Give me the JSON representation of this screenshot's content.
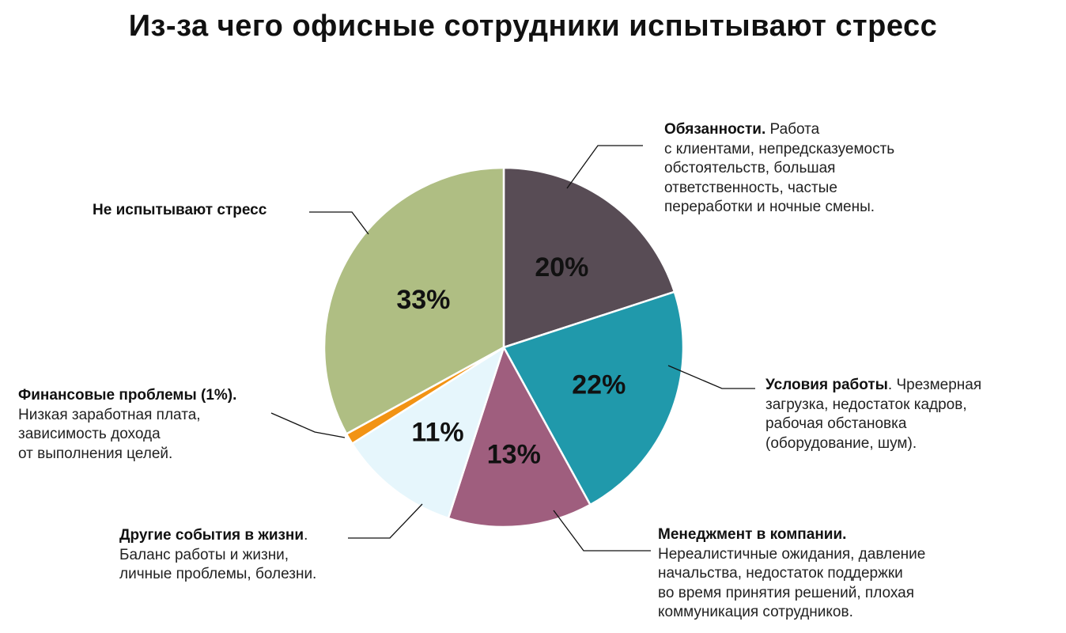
{
  "title": "Из-за чего офисные сотрудники испытывают стресс",
  "chart_data": {
    "type": "pie",
    "title": "Из-за чего офисные сотрудники испытывают стресс",
    "start_angle_deg": 0,
    "direction": "clockwise",
    "slices": [
      {
        "label": "Обязанности",
        "value": 20,
        "value_label": "20%",
        "color": "#584c55"
      },
      {
        "label": "Условия работы",
        "value": 22,
        "value_label": "22%",
        "color": "#2099ab"
      },
      {
        "label": "Менеджмент в компании",
        "value": 13,
        "value_label": "13%",
        "color": "#9f5e7e"
      },
      {
        "label": "Другие события в жизни",
        "value": 11,
        "value_label": "11%",
        "color": "#e6f6fc"
      },
      {
        "label": "Финансовые проблемы",
        "value": 1,
        "value_label": "",
        "color": "#f29314"
      },
      {
        "label": "Не испытывают стресс",
        "value": 33,
        "value_label": "33%",
        "color": "#afbe83"
      }
    ]
  },
  "annotations": {
    "duties": {
      "bold": "Обязанности.",
      "lines": [
        " Работа",
        "с клиентами, непредсказуемость",
        "обстоятельств, большая",
        "ответственность, частые",
        "переработки и ночные смены."
      ]
    },
    "conditions": {
      "bold": "Условия работы",
      "lines": [
        ". Чрезмерная",
        "загрузка, недостаток кадров,",
        "рабочая обстановка",
        "(оборудование, шум)."
      ]
    },
    "management": {
      "bold": "Менеджмент в компании.",
      "lines": [
        "Нереалистичные ожидания, давление",
        "начальства, недостаток поддержки",
        "во время принятия решений, плохая",
        "коммуникация сотрудников."
      ]
    },
    "life": {
      "bold": "Другие события в жизни",
      "lines": [
        ".",
        "Баланс работы и жизни,",
        "личные проблемы, болезни."
      ]
    },
    "finance": {
      "bold": "Финансовые проблемы (1%).",
      "lines": [
        "Низкая заработная плата,",
        "зависимость дохода",
        "от выполнения целей."
      ]
    },
    "nostress": {
      "bold": "Не испытывают стресс",
      "lines": []
    }
  }
}
